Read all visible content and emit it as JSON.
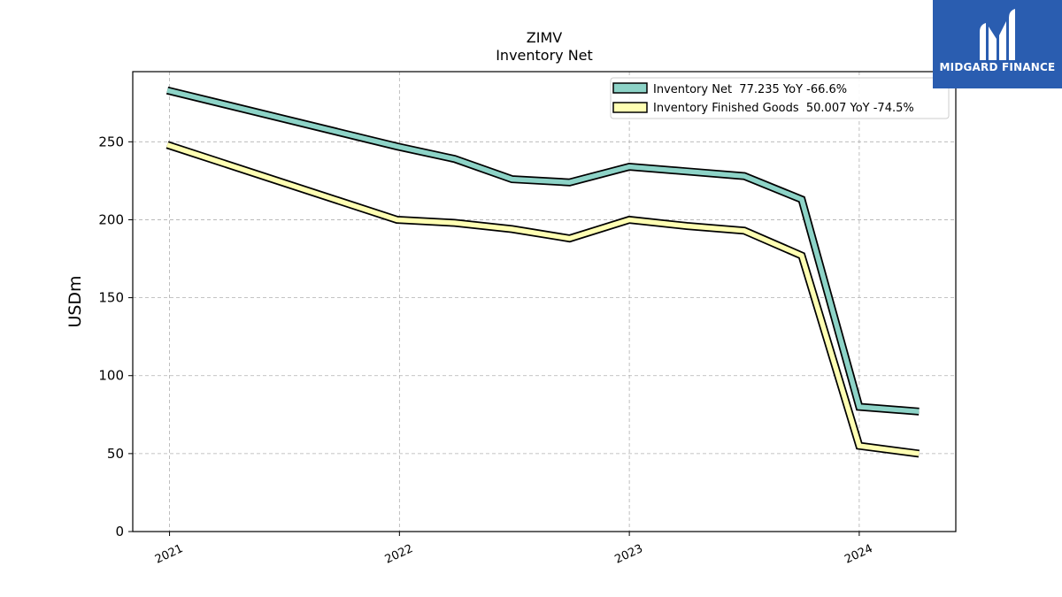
{
  "chart_data": {
    "type": "line",
    "title": "ZIMV",
    "subtitle": "Inventory Net",
    "xlabel": "",
    "ylabel": "USDm",
    "xlim": [
      2020.84,
      2024.42
    ],
    "ylim": [
      0,
      295
    ],
    "yticks": [
      0,
      50,
      100,
      150,
      200,
      250
    ],
    "xticks": [
      2021,
      2022,
      2023,
      2024
    ],
    "xtick_labels": [
      "2021",
      "2022",
      "2023",
      "2024"
    ],
    "grid": true,
    "legend_position": "top-right",
    "series": [
      {
        "name": "Inventory Net  77.235 YoY -66.6%",
        "color": "#8dd3c7",
        "x": [
          2020.99,
          2021.99,
          2022.24,
          2022.49,
          2022.74,
          2023.0,
          2023.25,
          2023.5,
          2023.75,
          2024.0,
          2024.26
        ],
        "y": [
          283,
          247,
          239,
          226,
          224,
          234,
          231,
          228,
          213,
          80,
          77
        ]
      },
      {
        "name": "Inventory Finished Goods  50.007 YoY -74.5%",
        "color": "#ffffb3",
        "x": [
          2020.99,
          2021.99,
          2022.24,
          2022.49,
          2022.74,
          2023.0,
          2023.25,
          2023.5,
          2023.75,
          2024.0,
          2024.26
        ],
        "y": [
          248,
          200,
          198,
          194,
          188,
          200,
          196,
          193,
          177,
          55,
          50
        ]
      }
    ]
  },
  "logo": {
    "text": "MIDGARD FINANCE",
    "color": "#2a5db0"
  }
}
